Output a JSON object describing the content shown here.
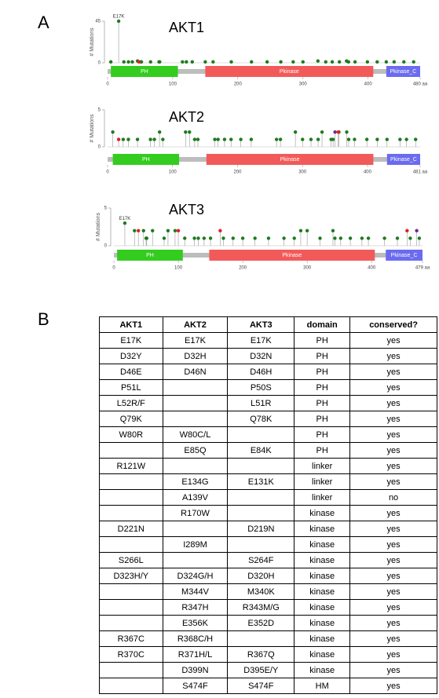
{
  "panel_labels": [
    "A",
    "B"
  ],
  "plots": [
    {
      "title": "AKT1",
      "y_label": "# Mutations",
      "ylim": [
        0,
        45
      ],
      "yticks": [
        0,
        45
      ],
      "xlim": [
        0,
        480
      ],
      "xticks": [
        0,
        100,
        200,
        300,
        400,
        {
          "value": 480,
          "label": "480 aa"
        }
      ],
      "domains": [
        {
          "name": "PH",
          "start": 5,
          "end": 108,
          "color": "#33cc1f"
        },
        {
          "name": "Pkinase",
          "start": 150,
          "end": 408,
          "color": "#f25a5a"
        },
        {
          "name": "Pkinase_C",
          "start": 428,
          "end": 480,
          "color": "#6b6bf0"
        }
      ],
      "annotations": [
        {
          "label": "E17K",
          "x": 17,
          "y": 45
        }
      ],
      "series": [
        {
          "color": "#1f7a1f",
          "x": [
            5,
            17,
            25,
            32,
            38,
            46,
            51,
            52,
            66,
            79,
            80,
            115,
            121,
            130,
            150,
            162,
            190,
            221,
            245,
            266,
            285,
            300,
            323,
            335,
            345,
            356,
            367,
            370,
            380,
            399,
            414,
            428,
            440,
            455,
            470
          ],
          "values": [
            1,
            45,
            1,
            1,
            1,
            2,
            1,
            1,
            1,
            1,
            1,
            1,
            1,
            1,
            1,
            1,
            1,
            1,
            1,
            1,
            1,
            1,
            2,
            1,
            1,
            1,
            2,
            1,
            1,
            1,
            1,
            1,
            1,
            1,
            1
          ]
        },
        {
          "color": "#e02020",
          "x": [
            48
          ],
          "values": [
            1
          ]
        }
      ]
    },
    {
      "title": "AKT2",
      "y_label": "# Mutations",
      "ylim": [
        0,
        5
      ],
      "yticks": [
        0,
        5
      ],
      "xlim": [
        0,
        481
      ],
      "xticks": [
        0,
        100,
        200,
        300,
        400,
        {
          "value": 481,
          "label": "481 aa"
        }
      ],
      "domains": [
        {
          "name": "PH",
          "start": 8,
          "end": 110,
          "color": "#33cc1f"
        },
        {
          "name": "Pkinase",
          "start": 152,
          "end": 409,
          "color": "#f25a5a"
        },
        {
          "name": "Pkinase_C",
          "start": 430,
          "end": 481,
          "color": "#6b6bf0"
        }
      ],
      "series": [
        {
          "color": "#1f7a1f",
          "x": [
            8,
            24,
            32,
            46,
            66,
            72,
            80,
            85,
            120,
            126,
            134,
            139,
            165,
            170,
            180,
            190,
            205,
            221,
            260,
            266,
            289,
            300,
            313,
            324,
            330,
            344,
            347,
            356,
            368,
            371,
            380,
            399,
            415,
            430,
            450,
            460,
            474
          ],
          "values": [
            2,
            1,
            1,
            1,
            1,
            1,
            2,
            1,
            2,
            2,
            1,
            1,
            1,
            1,
            1,
            1,
            1,
            1,
            1,
            1,
            2,
            1,
            1,
            1,
            2,
            1,
            1,
            2,
            2,
            1,
            1,
            1,
            1,
            1,
            1,
            1,
            1
          ]
        },
        {
          "color": "#e02020",
          "x": [
            17,
            355
          ],
          "values": [
            1,
            2
          ]
        },
        {
          "color": "#6a2c91",
          "x": [
            350
          ],
          "values": [
            2
          ]
        }
      ]
    },
    {
      "title": "AKT3",
      "y_label": "# Mutations",
      "ylim": [
        0,
        5
      ],
      "yticks": [
        0,
        5
      ],
      "xlim": [
        0,
        479
      ],
      "xticks": [
        0,
        100,
        200,
        300,
        400,
        {
          "value": 479,
          "label": "479 aa"
        }
      ],
      "domains": [
        {
          "name": "PH",
          "start": 5,
          "end": 107,
          "color": "#33cc1f"
        },
        {
          "name": "Pkinase",
          "start": 148,
          "end": 405,
          "color": "#f25a5a"
        },
        {
          "name": "Pkinase_C",
          "start": 422,
          "end": 479,
          "color": "#6b6bf0"
        }
      ],
      "annotations": [
        {
          "label": "E17K",
          "x": 17,
          "y": 3
        }
      ],
      "series": [
        {
          "color": "#1f7a1f",
          "x": [
            17,
            32,
            46,
            50,
            51,
            60,
            78,
            84,
            95,
            110,
            125,
            131,
            140,
            150,
            170,
            185,
            200,
            219,
            240,
            264,
            280,
            290,
            300,
            320,
            340,
            343,
            352,
            367,
            385,
            395,
            420,
            440,
            460,
            474
          ],
          "values": [
            3,
            2,
            2,
            1,
            1,
            2,
            1,
            2,
            2,
            1,
            1,
            1,
            1,
            1,
            1,
            1,
            1,
            1,
            1,
            1,
            1,
            2,
            2,
            1,
            2,
            1,
            1,
            1,
            1,
            1,
            1,
            1,
            1,
            1
          ]
        },
        {
          "color": "#e02020",
          "x": [
            38,
            100,
            165,
            455
          ],
          "values": [
            2,
            2,
            2,
            2
          ]
        },
        {
          "color": "#6a2c91",
          "x": [
            470
          ],
          "values": [
            2
          ]
        }
      ]
    }
  ],
  "table": {
    "header": [
      "AKT1",
      "AKT2",
      "AKT3",
      "domain",
      "conserved?"
    ],
    "rows": [
      [
        "E17K",
        "E17K",
        "E17K",
        "PH",
        "yes"
      ],
      [
        "D32Y",
        "D32H",
        "D32N",
        "PH",
        "yes"
      ],
      [
        "D46E",
        "D46N",
        "D46H",
        "PH",
        "yes"
      ],
      [
        "P51L",
        null,
        "P50S",
        "PH",
        "yes"
      ],
      [
        "L52R/F",
        null,
        "L51R",
        "PH",
        "yes"
      ],
      [
        "Q79K",
        null,
        "Q78K",
        "PH",
        "yes"
      ],
      [
        "W80R",
        "W80C/L",
        null,
        "PH",
        "yes"
      ],
      [
        null,
        "E85Q",
        "E84K",
        "PH",
        "yes"
      ],
      [
        "R121W",
        null,
        null,
        "linker",
        "yes"
      ],
      [
        null,
        "E134G",
        "E131K",
        "linker",
        "yes"
      ],
      [
        null,
        "A139V",
        null,
        "linker",
        "no"
      ],
      [
        null,
        "R170W",
        null,
        "kinase",
        "yes"
      ],
      [
        "D221N",
        null,
        "D219N",
        "kinase",
        "yes"
      ],
      [
        null,
        "I289M",
        null,
        "kinase",
        "yes"
      ],
      [
        "S266L",
        null,
        "S264F",
        "kinase",
        "yes"
      ],
      [
        "D323H/Y",
        "D324G/H",
        "D320H",
        "kinase",
        "yes"
      ],
      [
        null,
        "M344V",
        "M340K",
        "kinase",
        "yes"
      ],
      [
        null,
        "R347H",
        "R343M/G",
        "kinase",
        "yes"
      ],
      [
        null,
        "E356K",
        "E352D",
        "kinase",
        "yes"
      ],
      [
        "R367C",
        "R368C/H",
        null,
        "kinase",
        "yes"
      ],
      [
        "R370C",
        "R371H/L",
        "R367Q",
        "kinase",
        "yes"
      ],
      [
        null,
        "D399N",
        "D395E/Y",
        "kinase",
        "yes"
      ],
      [
        null,
        "S474F",
        "S474F",
        "HM",
        "yes"
      ]
    ]
  }
}
